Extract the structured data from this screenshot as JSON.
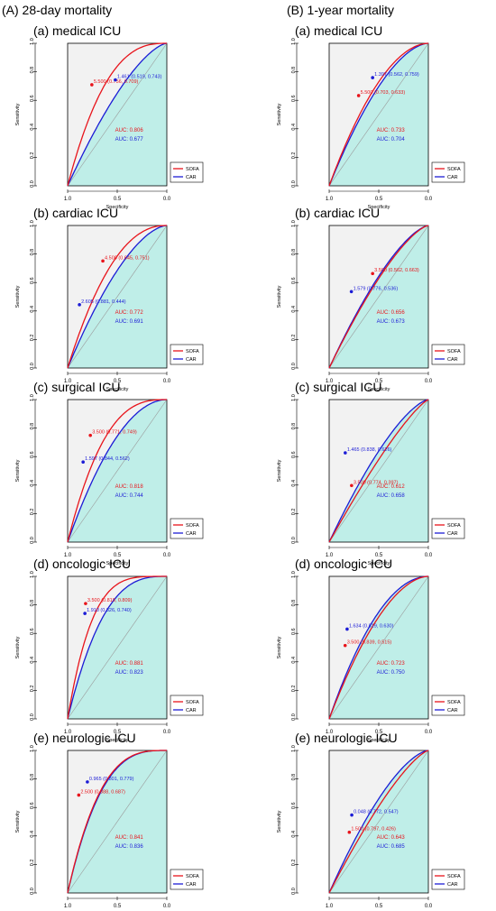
{
  "titles": {
    "left": "(A) 28-day mortality",
    "right": "(B) 1-year mortality"
  },
  "axes": {
    "xlabel": "Specificity",
    "ylabel": "Sensitivity",
    "xticks": [
      "1.0",
      "0.5",
      "0.0"
    ],
    "yticks": [
      "0.0",
      "0.2",
      "0.4",
      "0.6",
      "0.8",
      "1.0"
    ]
  },
  "legend": [
    "SOFA",
    "CAR"
  ],
  "colors": {
    "SOFA": "#e8141b",
    "CAR": "#1c1cd6",
    "auc_fill": "#bfeee8",
    "panel_bg": "#f2f2f2"
  },
  "chart_data": [
    {
      "type": "line",
      "column": "A",
      "title": "(a) medical ICU",
      "xlabel": "Specificity",
      "ylabel": "Sensitivity",
      "series": [
        {
          "name": "SOFA",
          "auc_label": "AUC: 0.806",
          "cutoff_label": "5.500 (0.756, 0.709)",
          "cutoff": [
            0.756,
            0.709
          ],
          "bow": 0.62
        },
        {
          "name": "CAR",
          "auc_label": "AUC: 0.677",
          "cutoff_label": "1.461 (0.519, 0.743)",
          "cutoff": [
            0.519,
            0.743
          ],
          "bow": 0.34
        }
      ]
    },
    {
      "type": "line",
      "column": "A",
      "title": "(b) cardiac ICU",
      "xlabel": "Specificity",
      "ylabel": "Sensitivity",
      "series": [
        {
          "name": "SOFA",
          "auc_label": "AUC: 0.772",
          "cutoff_label": "4.500 (0.645, 0.751)",
          "cutoff": [
            0.645,
            0.751
          ],
          "bow": 0.55
        },
        {
          "name": "CAR",
          "auc_label": "AUC: 0.691",
          "cutoff_label": "2.605 (0.881, 0.444)",
          "cutoff": [
            0.881,
            0.444
          ],
          "bow": 0.4
        }
      ]
    },
    {
      "type": "line",
      "column": "A",
      "title": "(c) surgical ICU",
      "xlabel": "Specificity",
      "ylabel": "Sensitivity",
      "series": [
        {
          "name": "SOFA",
          "auc_label": "AUC: 0.818",
          "cutoff_label": "3.500 (0.771, 0.749)",
          "cutoff": [
            0.771,
            0.749
          ],
          "bow": 0.64
        },
        {
          "name": "CAR",
          "auc_label": "AUC: 0.744",
          "cutoff_label": "1.597 (0.844, 0.562)",
          "cutoff": [
            0.844,
            0.562
          ],
          "bow": 0.49
        }
      ]
    },
    {
      "type": "line",
      "column": "A",
      "title": "(d) oncologic ICU",
      "xlabel": "Specificity",
      "ylabel": "Sensitivity",
      "series": [
        {
          "name": "SOFA",
          "auc_label": "AUC: 0.881",
          "cutoff_label": "3.500 (0.819, 0.809)",
          "cutoff": [
            0.819,
            0.809
          ],
          "bow": 0.76
        },
        {
          "name": "CAR",
          "auc_label": "AUC: 0.823",
          "cutoff_label": "1.910 (0.826, 0.740)",
          "cutoff": [
            0.826,
            0.74
          ],
          "bow": 0.65
        }
      ]
    },
    {
      "type": "line",
      "column": "A",
      "title": "(e) neurologic ICU",
      "xlabel": "Specificity",
      "ylabel": "Sensitivity",
      "series": [
        {
          "name": "SOFA",
          "auc_label": "AUC: 0.841",
          "cutoff_label": "2.500 (0.888, 0.687)",
          "cutoff": [
            0.888,
            0.687
          ],
          "bow": 0.68
        },
        {
          "name": "CAR",
          "auc_label": "AUC: 0.836",
          "cutoff_label": "0.965 (0.801, 0.779)",
          "cutoff": [
            0.801,
            0.779
          ],
          "bow": 0.67
        }
      ]
    },
    {
      "type": "line",
      "column": "B",
      "title": "(a) medical ICU",
      "xlabel": "Specificity",
      "ylabel": "Sensitivity",
      "series": [
        {
          "name": "SOFA",
          "auc_label": "AUC: 0.733",
          "cutoff_label": "5.500 (0.703, 0.633)",
          "cutoff": [
            0.703,
            0.633
          ],
          "bow": 0.47
        },
        {
          "name": "CAR",
          "auc_label": "AUC: 0.704",
          "cutoff_label": "1.397 (0.562, 0.759)",
          "cutoff": [
            0.562,
            0.759
          ],
          "bow": 0.42
        }
      ]
    },
    {
      "type": "line",
      "column": "B",
      "title": "(b) cardiac ICU",
      "xlabel": "Specificity",
      "ylabel": "Sensitivity",
      "series": [
        {
          "name": "SOFA",
          "auc_label": "AUC: 0.656",
          "cutoff_label": "3.500 (0.562, 0.663)",
          "cutoff": [
            0.562,
            0.663
          ],
          "bow": 0.3
        },
        {
          "name": "CAR",
          "auc_label": "AUC: 0.673",
          "cutoff_label": "1.579 (0.776, 0.536)",
          "cutoff": [
            0.776,
            0.536
          ],
          "bow": 0.33
        }
      ]
    },
    {
      "type": "line",
      "column": "B",
      "title": "(c) surgical ICU",
      "xlabel": "Specificity",
      "ylabel": "Sensitivity",
      "series": [
        {
          "name": "SOFA",
          "auc_label": "AUC: 0.612",
          "cutoff_label": "3.500 (0.774, 0.397)",
          "cutoff": [
            0.774,
            0.397
          ],
          "bow": 0.2
        },
        {
          "name": "CAR",
          "auc_label": "AUC: 0.658",
          "cutoff_label": "1.465 (0.838, 0.626)",
          "cutoff": [
            0.838,
            0.626
          ],
          "bow": 0.32
        }
      ]
    },
    {
      "type": "line",
      "column": "B",
      "title": "(d) oncologic ICU",
      "xlabel": "Specificity",
      "ylabel": "Sensitivity",
      "series": [
        {
          "name": "SOFA",
          "auc_label": "AUC: 0.723",
          "cutoff_label": "3.500 (0.839, 0.515)",
          "cutoff": [
            0.839,
            0.515
          ],
          "bow": 0.45
        },
        {
          "name": "CAR",
          "auc_label": "AUC: 0.750",
          "cutoff_label": "1.634 (0.819, 0.630)",
          "cutoff": [
            0.819,
            0.63
          ],
          "bow": 0.5
        }
      ]
    },
    {
      "type": "line",
      "column": "B",
      "title": "(e) neurologic ICU",
      "xlabel": "Specificity",
      "ylabel": "Sensitivity",
      "series": [
        {
          "name": "SOFA",
          "auc_label": "AUC: 0.643",
          "cutoff_label": "1.500 (0.797, 0.426)",
          "cutoff": [
            0.797,
            0.426
          ],
          "bow": 0.26
        },
        {
          "name": "CAR",
          "auc_label": "AUC: 0.685",
          "cutoff_label": "0.048 (0.772, 0.547)",
          "cutoff": [
            0.772,
            0.547
          ],
          "bow": 0.36
        }
      ]
    }
  ]
}
